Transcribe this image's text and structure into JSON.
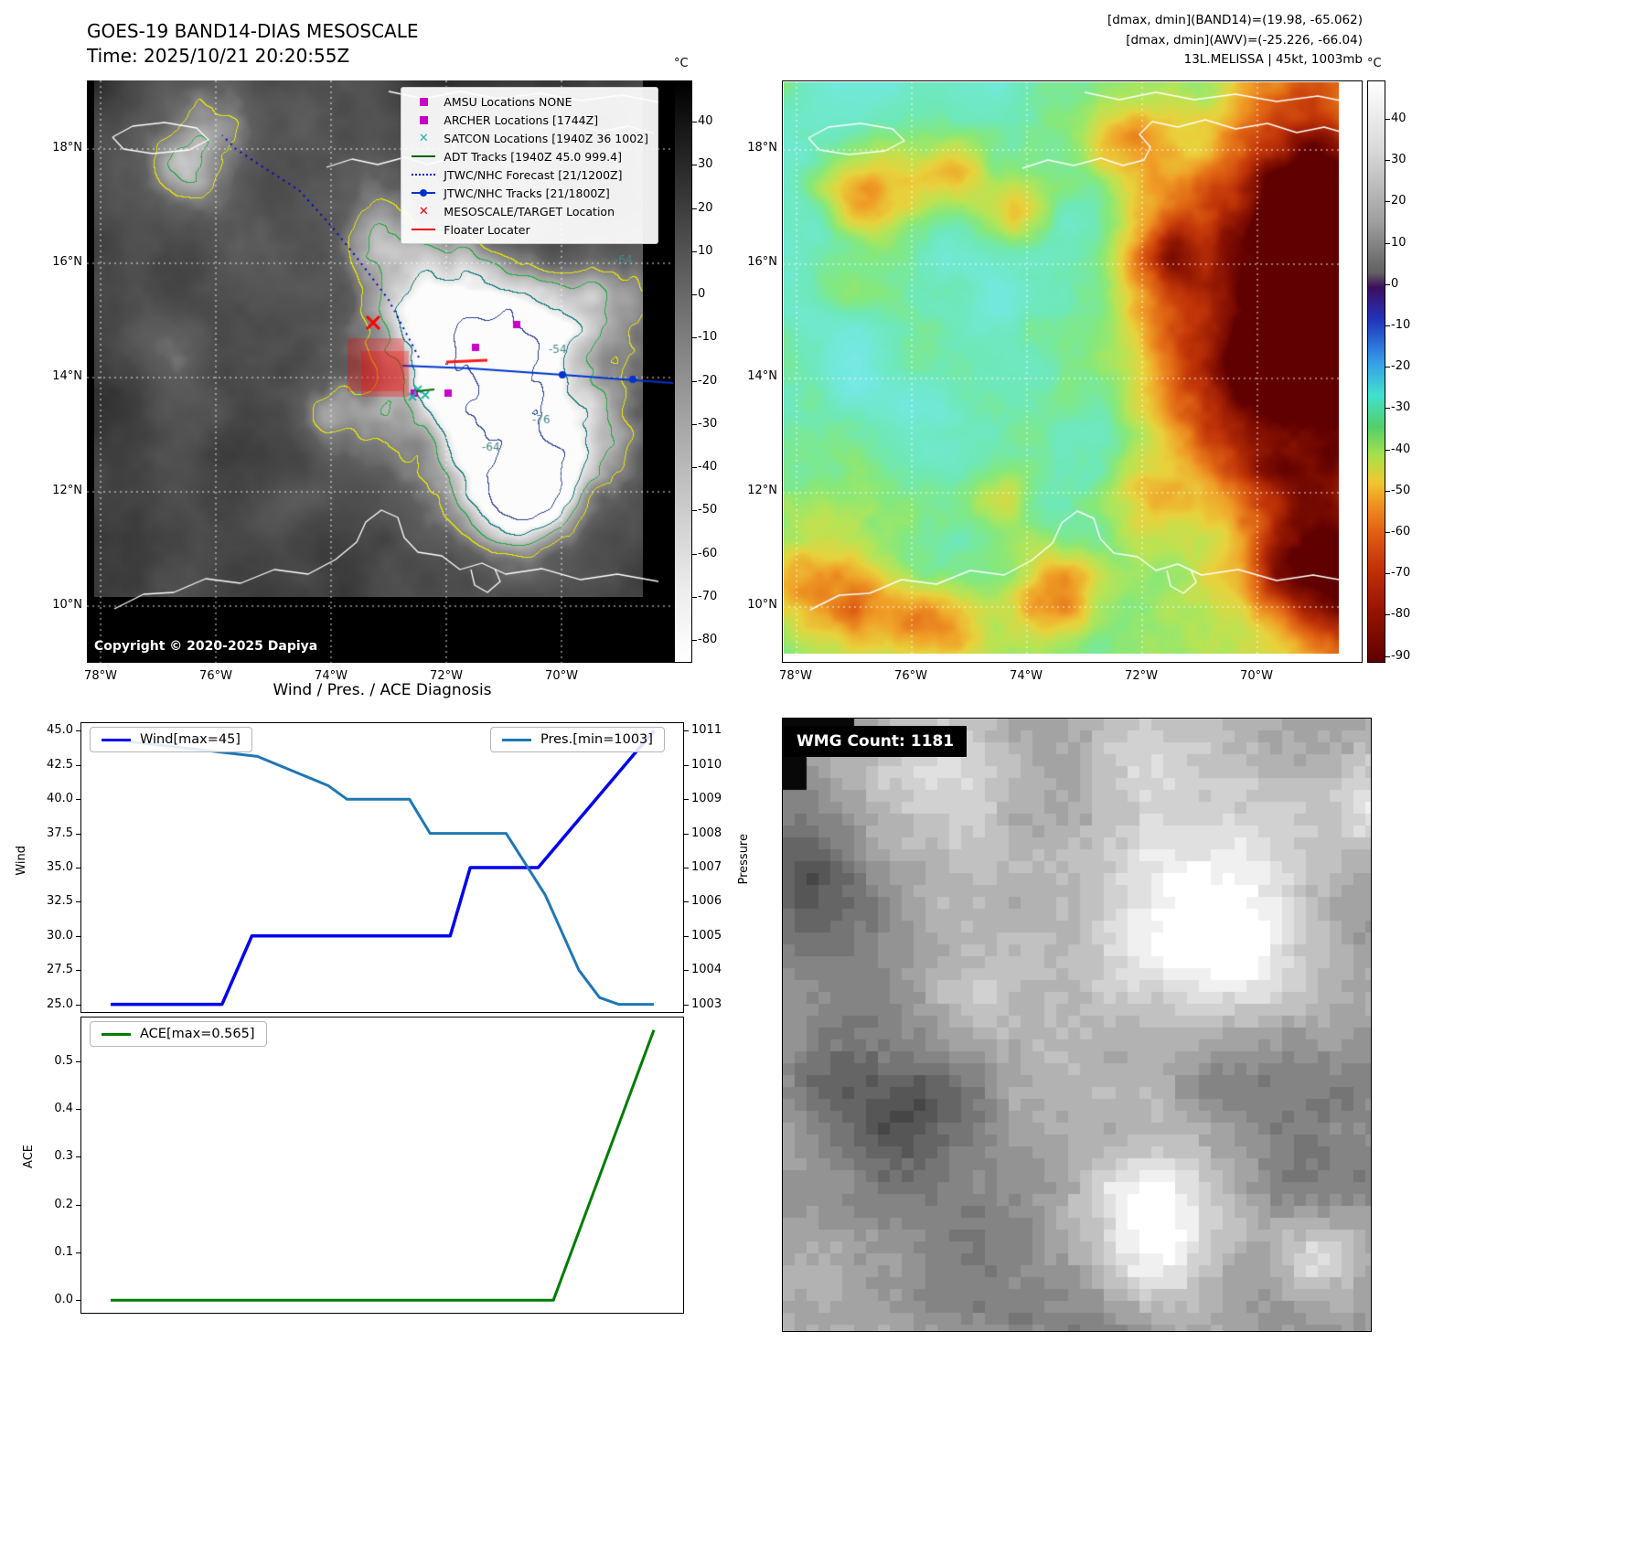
{
  "band14": {
    "title": "GOES-19 BAND14-DIAS MESOSCALE",
    "time_line": "Time: 2025/10/21 20:20:55Z",
    "copyright": "Copyright © 2020-2025 Dapiya",
    "colorbar": {
      "unit": "°C",
      "ticks": [
        "40",
        "30",
        "20",
        "10",
        "0",
        "-10",
        "-20",
        "-30",
        "-40",
        "-50",
        "-60",
        "-70",
        "-80"
      ]
    },
    "lat_ticks": [
      "18°N",
      "16°N",
      "14°N",
      "12°N",
      "10°N"
    ],
    "lon_ticks": [
      "78°W",
      "76°W",
      "74°W",
      "72°W",
      "70°W"
    ],
    "contour_labels": [
      "-54",
      "-64",
      "-76",
      "-64"
    ],
    "legend": [
      {
        "label": "AMSU Locations NONE",
        "marker": "square",
        "color": "#c800c8"
      },
      {
        "label": "ARCHER Locations [1744Z]",
        "marker": "square",
        "color": "#c800c8"
      },
      {
        "label": "SATCON Locations [1940Z 36 1002]",
        "marker": "x",
        "color": "#20b2aa"
      },
      {
        "label": "ADT Tracks [1940Z 45.0 999.4]",
        "marker": "line",
        "color": "#006400"
      },
      {
        "label": "JTWC/NHC Forecast [21/1200Z]",
        "marker": "dotted-line",
        "color": "#0000e0"
      },
      {
        "label": "JTWC/NHC Tracks [21/1800Z]",
        "marker": "line-marker",
        "color": "#0033cc"
      },
      {
        "label": "MESOSCALE/TARGET Location",
        "marker": "x",
        "color": "#e8000b"
      },
      {
        "label": "Floater Locater",
        "marker": "line",
        "color": "#e8000b"
      }
    ]
  },
  "awv": {
    "header": [
      "[dmax, dmin](BAND14)=(19.98, -65.062)",
      "[dmax, dmin](AWV)=(-25.226, -66.04)",
      "13L.MELISSA | 45kt, 1003mb"
    ],
    "colorbar": {
      "unit": "°C",
      "ticks": [
        "40",
        "30",
        "20",
        "10",
        "0",
        "-10",
        "-20",
        "-30",
        "-40",
        "-50",
        "-60",
        "-70",
        "-80",
        "-90"
      ]
    },
    "lat_ticks": [
      "18°N",
      "16°N",
      "14°N",
      "12°N",
      "10°N"
    ],
    "lon_ticks": [
      "78°W",
      "76°W",
      "74°W",
      "72°W",
      "70°W"
    ]
  },
  "diagnosis": {
    "title": "Wind / Pres. / ACE Diagnosis"
  },
  "chart_data": [
    {
      "type": "line",
      "title": "Wind / Pres. / ACE Diagnosis",
      "ylabel_left": "Wind",
      "ylabel_right": "Pressure",
      "ylim_left": [
        25,
        45
      ],
      "yticks_left": [
        "25.0",
        "27.5",
        "30.0",
        "32.5",
        "35.0",
        "37.5",
        "40.0",
        "42.5",
        "45.0"
      ],
      "ylim_right": [
        1003,
        1011
      ],
      "yticks_right": [
        "1003",
        "1004",
        "1005",
        "1006",
        "1007",
        "1008",
        "1009",
        "1010",
        "1011"
      ],
      "series": [
        {
          "name": "Wind[max=45]",
          "axis": "left",
          "color": "#0000ee",
          "width": 3.5,
          "x": [
            0,
            0.205,
            0.26,
            0.625,
            0.662,
            0.787,
            1.0
          ],
          "y": [
            25,
            25,
            30,
            30,
            35,
            35,
            45
          ]
        },
        {
          "name": "Pres.[min=1003]",
          "axis": "right",
          "color": "#1f77b4",
          "width": 3,
          "x": [
            0.025,
            0.27,
            0.4,
            0.435,
            0.55,
            0.588,
            0.728,
            0.8,
            0.862,
            0.9,
            0.935,
            1.0
          ],
          "y": [
            1010.7,
            1010.25,
            1009.4,
            1009,
            1009,
            1008,
            1008,
            1006.2,
            1004,
            1003.2,
            1003,
            1003
          ]
        }
      ]
    },
    {
      "type": "line",
      "ylabel_left": "ACE",
      "ylim_left": [
        0,
        0.565
      ],
      "yticks_left": [
        "0.0",
        "0.1",
        "0.2",
        "0.3",
        "0.4",
        "0.5"
      ],
      "series": [
        {
          "name": "ACE[max=0.565]",
          "axis": "left",
          "color": "#007d00",
          "width": 3,
          "x": [
            0,
            0.815,
            1.0
          ],
          "y": [
            0,
            0,
            0.565
          ]
        }
      ]
    }
  ],
  "wmg": {
    "label": "WMG Count: 1181"
  }
}
